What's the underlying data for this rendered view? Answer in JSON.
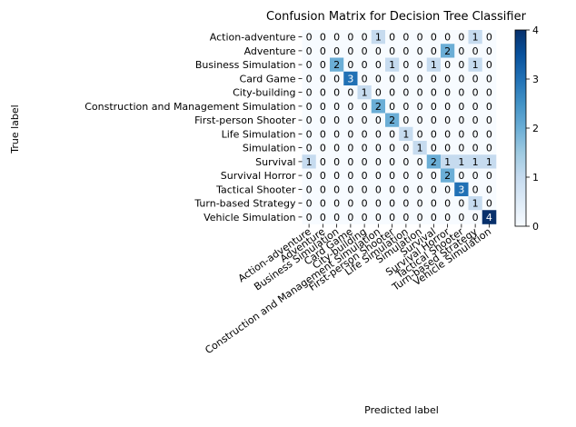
{
  "chart_data": {
    "type": "heatmap",
    "title": "Confusion Matrix for Decision Tree Classifier",
    "xlabel": "Predicted label",
    "ylabel": "True label",
    "labels": [
      "Action-adventure",
      "Adventure",
      "Business Simulation",
      "Card Game",
      "City-building",
      "Construction and Management Simulation",
      "First-person Shooter",
      "Life Simulation",
      "Simulation",
      "Survival",
      "Survival Horror",
      "Tactical Shooter",
      "Turn-based Strategy",
      "Vehicle Simulation"
    ],
    "matrix": [
      [
        0,
        0,
        0,
        0,
        0,
        1,
        0,
        0,
        0,
        0,
        0,
        0,
        1,
        0
      ],
      [
        0,
        0,
        0,
        0,
        0,
        0,
        0,
        0,
        0,
        0,
        2,
        0,
        0,
        0
      ],
      [
        0,
        0,
        2,
        0,
        0,
        0,
        1,
        0,
        0,
        1,
        0,
        0,
        1,
        0
      ],
      [
        0,
        0,
        0,
        3,
        0,
        0,
        0,
        0,
        0,
        0,
        0,
        0,
        0,
        0
      ],
      [
        0,
        0,
        0,
        0,
        1,
        0,
        0,
        0,
        0,
        0,
        0,
        0,
        0,
        0
      ],
      [
        0,
        0,
        0,
        0,
        0,
        2,
        0,
        0,
        0,
        0,
        0,
        0,
        0,
        0
      ],
      [
        0,
        0,
        0,
        0,
        0,
        0,
        2,
        0,
        0,
        0,
        0,
        0,
        0,
        0
      ],
      [
        0,
        0,
        0,
        0,
        0,
        0,
        0,
        1,
        0,
        0,
        0,
        0,
        0,
        0
      ],
      [
        0,
        0,
        0,
        0,
        0,
        0,
        0,
        0,
        1,
        0,
        0,
        0,
        0,
        0
      ],
      [
        1,
        0,
        0,
        0,
        0,
        0,
        0,
        0,
        0,
        2,
        1,
        1,
        1,
        1
      ],
      [
        0,
        0,
        0,
        0,
        0,
        0,
        0,
        0,
        0,
        0,
        2,
        0,
        0,
        0
      ],
      [
        0,
        0,
        0,
        0,
        0,
        0,
        0,
        0,
        0,
        0,
        0,
        3,
        0,
        0
      ],
      [
        0,
        0,
        0,
        0,
        0,
        0,
        0,
        0,
        0,
        0,
        0,
        0,
        1,
        0
      ],
      [
        0,
        0,
        0,
        0,
        0,
        0,
        0,
        0,
        0,
        0,
        0,
        0,
        0,
        4
      ]
    ],
    "colorbar": {
      "range": [
        0,
        4
      ],
      "ticks": [
        "0",
        "1",
        "2",
        "3",
        "4"
      ],
      "colormap": "Blues"
    },
    "colors": {
      "min": "#f7fbff",
      "max": "#08306b"
    },
    "grid": false
  }
}
